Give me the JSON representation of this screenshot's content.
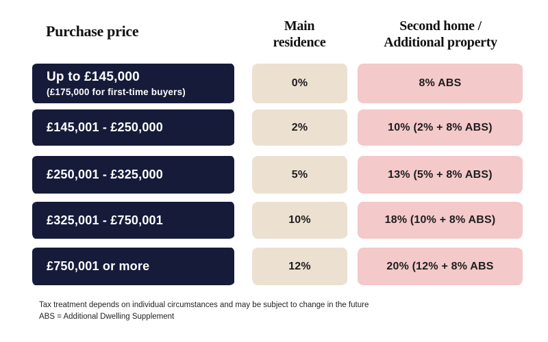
{
  "colors": {
    "navy": "#161b3a",
    "beige": "#ece0d1",
    "pink": "#f3c9ca",
    "background": "#ffffff",
    "header_text": "#111111",
    "cell_text": "#1d1d1d",
    "pill_text_light": "#ffffff"
  },
  "headers": {
    "purchase_price": "Purchase price",
    "main_residence": "Main\nresidence",
    "second_home": "Second home /\nAdditional property"
  },
  "rows": [
    {
      "price": "Up to £145,000",
      "price_note": "(£175,000 for first-time buyers)",
      "main_rate": "0%",
      "second_rate": "8% ABS"
    },
    {
      "price": "£145,001 - £250,000",
      "price_note": "",
      "main_rate": "2%",
      "second_rate": "10% (2% + 8% ABS)"
    },
    {
      "price": "£250,001 - £325,000",
      "price_note": "",
      "main_rate": "5%",
      "second_rate": "13% (5% + 8% ABS)"
    },
    {
      "price": "£325,001 - £750,001",
      "price_note": "",
      "main_rate": "10%",
      "second_rate": "18% (10% + 8% ABS)"
    },
    {
      "price": "£750,001 or more",
      "price_note": "",
      "main_rate": "12%",
      "second_rate": "20% (12% + 8% ABS"
    }
  ],
  "footnotes": {
    "line1": "Tax treatment depends on individual circumstances and may be subject to change in the future",
    "line2": "ABS =  Additional Dwelling Supplement"
  },
  "chart_data": {
    "type": "table",
    "title": "",
    "columns": [
      "Purchase price",
      "Main residence",
      "Second home / Additional property"
    ],
    "rows": [
      [
        "Up to £145,000 (£175,000 for first-time buyers)",
        "0%",
        "8% ABS"
      ],
      [
        "£145,001 - £250,000",
        "2%",
        "10% (2% + 8% ABS)"
      ],
      [
        "£250,001 - £325,000",
        "5%",
        "13% (5% + 8% ABS)"
      ],
      [
        "£325,001 - £750,001",
        "10%",
        "18% (10% + 8% ABS)"
      ],
      [
        "£750,001 or more",
        "12%",
        "20% (12% + 8% ABS"
      ]
    ],
    "footnotes": [
      "Tax treatment depends on individual circumstances and may be subject to change in the future",
      "ABS =  Additional Dwelling Supplement"
    ]
  }
}
